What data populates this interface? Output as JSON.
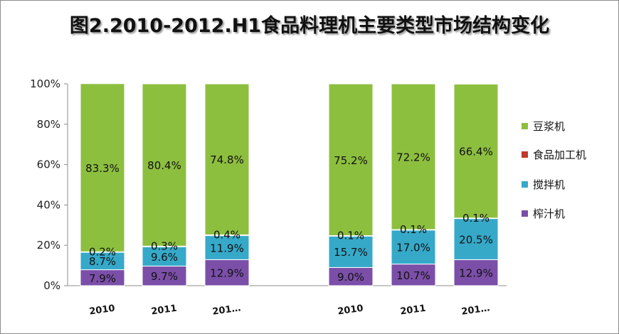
{
  "chart_data": {
    "type": "bar",
    "stacked": true,
    "normalized": true,
    "title": "图2.2010-2012.H1食品料理机主要类型市场结构变化",
    "xlabel": "",
    "ylabel": "",
    "ylim": [
      0,
      100
    ],
    "yticks": [
      "0%",
      "20%",
      "40%",
      "60%",
      "80%",
      "100%"
    ],
    "grid": false,
    "legend_position": "right",
    "groups": [
      {
        "categories": [
          "2010",
          "2011",
          "201…"
        ]
      },
      {
        "categories": [
          "2010",
          "2011",
          "201…"
        ]
      }
    ],
    "series": [
      {
        "name": "榨汁机",
        "color": "#7b4fa8",
        "values": [
          7.9,
          9.7,
          12.9,
          9.0,
          10.7,
          12.9
        ],
        "labels": [
          "7.9%",
          "9.7%",
          "12.9%",
          "9.0%",
          "10.7%",
          "12.9%"
        ]
      },
      {
        "name": "搅拌机",
        "color": "#36a9c9",
        "values": [
          8.7,
          9.6,
          11.9,
          15.7,
          17.0,
          20.5
        ],
        "labels": [
          "8.7%",
          "9.6%",
          "11.9%",
          "15.7%",
          "17.0%",
          "20.5%"
        ]
      },
      {
        "name": "食品加工机",
        "color": "#c0392b",
        "values": [
          0.2,
          0.3,
          0.4,
          0.1,
          0.1,
          0.1
        ],
        "labels": [
          "0.2%",
          "0.3%",
          "0.4%",
          "0.1%",
          "0.1%",
          "0.1%"
        ]
      },
      {
        "name": "豆浆机",
        "color": "#8dbf3f",
        "values": [
          83.3,
          80.4,
          74.8,
          75.2,
          72.2,
          66.4
        ],
        "labels": [
          "83.3%",
          "80.4%",
          "74.8%",
          "75.2%",
          "72.2%",
          "66.4%"
        ]
      }
    ],
    "legend_order": [
      "豆浆机",
      "食品加工机",
      "搅拌机",
      "榨汁机"
    ]
  }
}
